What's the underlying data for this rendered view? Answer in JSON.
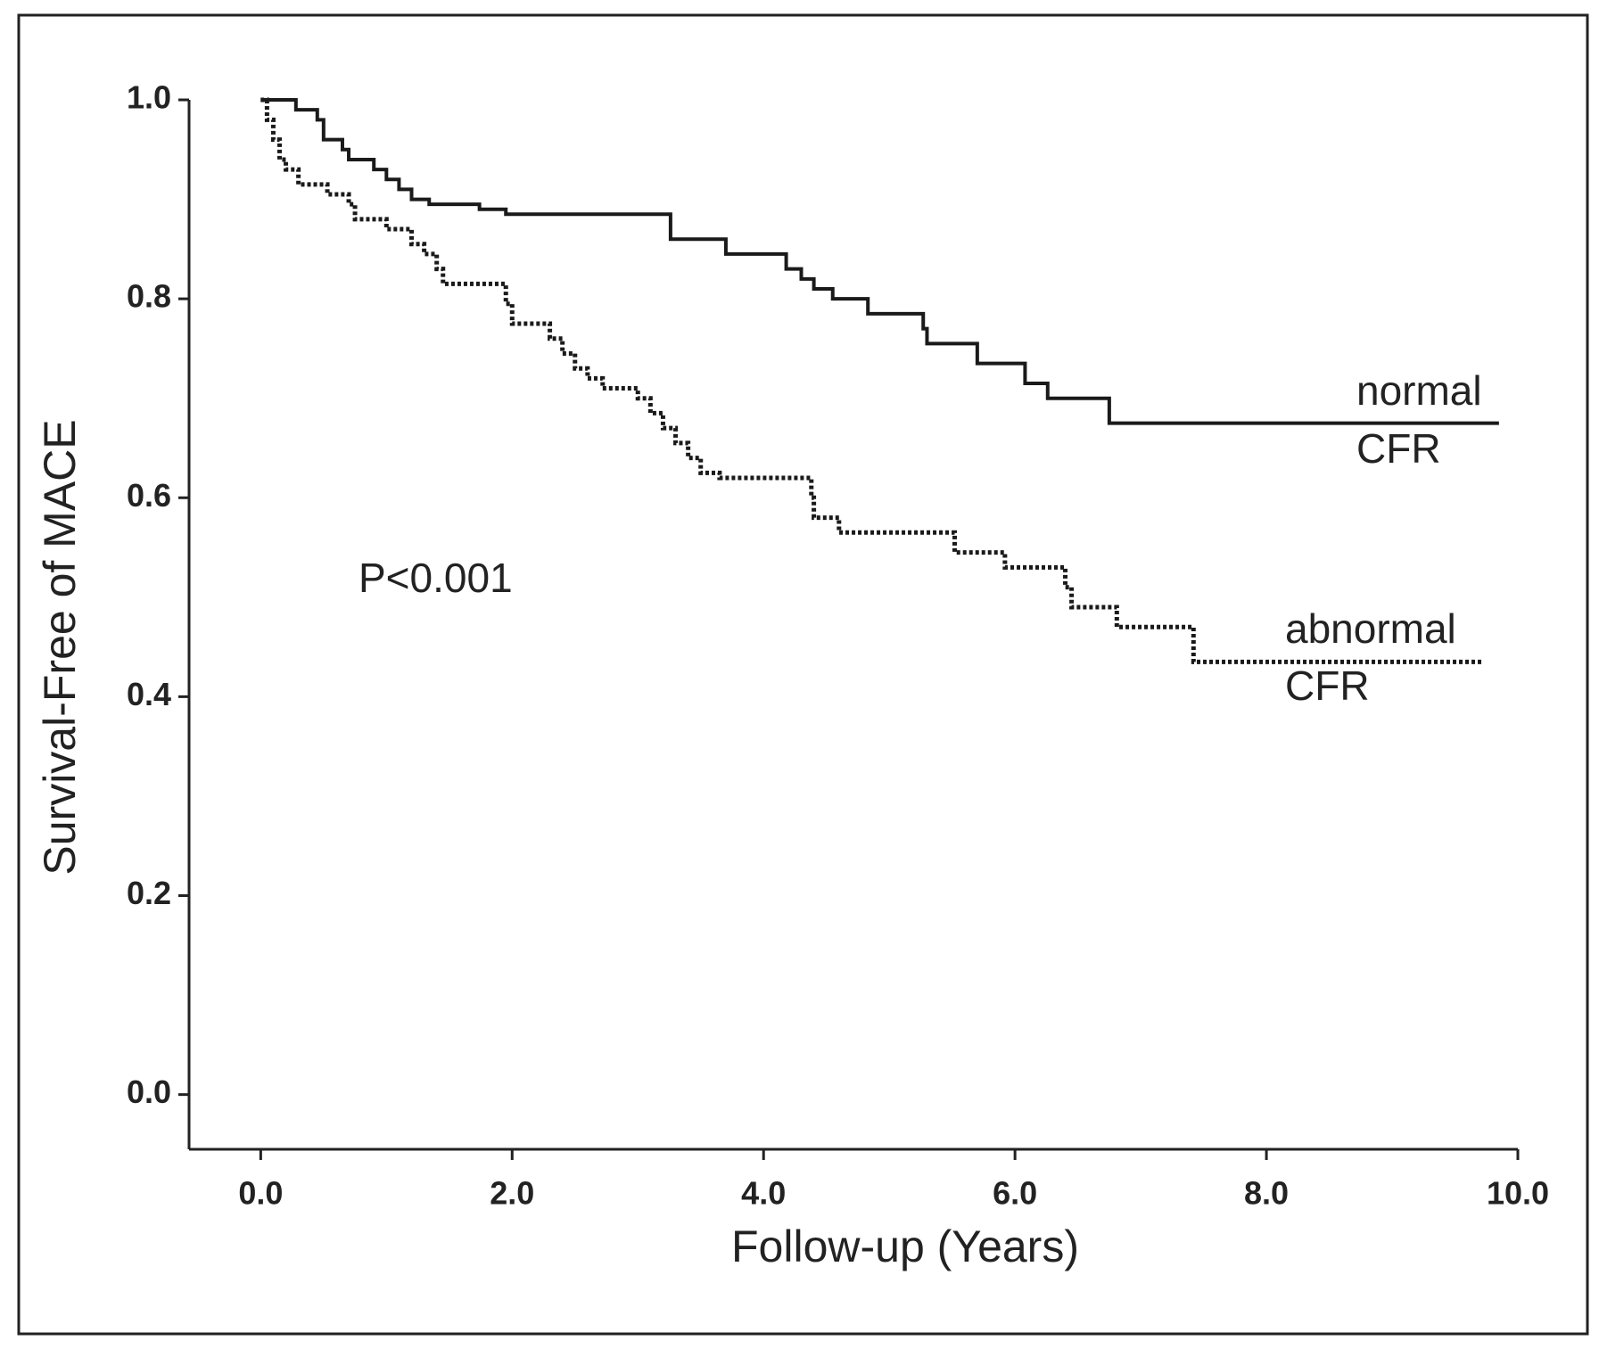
{
  "chart_data": {
    "type": "step",
    "x_label": "Follow-up (Years)",
    "y_label": "Survival-Free of MACE",
    "annotation": "P<0.001",
    "xlim": [
      -0.57,
      10
    ],
    "ylim": [
      -0.055,
      1
    ],
    "xticks": [
      {
        "value": 0,
        "label": "0.0"
      },
      {
        "value": 2,
        "label": "2.0"
      },
      {
        "value": 4,
        "label": "4.0"
      },
      {
        "value": 6,
        "label": "6.0"
      },
      {
        "value": 8,
        "label": "8.0"
      },
      {
        "value": 10,
        "label": "10.0"
      }
    ],
    "yticks": [
      {
        "value": 0,
        "label": "0.0"
      },
      {
        "value": 0.2,
        "label": "0.2"
      },
      {
        "value": 0.4,
        "label": "0.4"
      },
      {
        "value": 0.6,
        "label": "0.6"
      },
      {
        "value": 0.8,
        "label": "0.8"
      },
      {
        "value": 1,
        "label": "1.0"
      }
    ],
    "series": [
      {
        "name_lines": [
          "normal",
          "CFR"
        ],
        "color": "#1a1a1a",
        "dashed": false,
        "x": [
          0,
          0.28,
          0.45,
          0.5,
          0.65,
          0.7,
          0.9,
          1.0,
          1.1,
          1.2,
          1.34,
          1.74,
          1.95,
          3.26,
          3.7,
          4.18,
          4.3,
          4.4,
          4.55,
          4.83,
          5.27,
          5.3,
          5.7,
          6.08,
          6.26,
          6.75,
          9.85
        ],
        "values": [
          1.0,
          0.99,
          0.98,
          0.96,
          0.95,
          0.94,
          0.93,
          0.92,
          0.91,
          0.9,
          0.895,
          0.89,
          0.885,
          0.86,
          0.845,
          0.83,
          0.82,
          0.81,
          0.8,
          0.785,
          0.77,
          0.755,
          0.735,
          0.715,
          0.7,
          0.675,
          0.675
        ]
      },
      {
        "name_lines": [
          "abnormal",
          "CFR"
        ],
        "color": "#1a1a1a",
        "dashed": true,
        "x": [
          0,
          0.05,
          0.1,
          0.15,
          0.2,
          0.3,
          0.53,
          0.7,
          0.75,
          1.0,
          1.2,
          1.3,
          1.4,
          1.45,
          1.95,
          2.0,
          2.3,
          2.4,
          2.5,
          2.6,
          2.72,
          3.0,
          3.1,
          3.2,
          3.3,
          3.4,
          3.5,
          3.65,
          4.38,
          4.4,
          4.6,
          5.52,
          5.92,
          6.4,
          6.45,
          6.81,
          7.42,
          9.73
        ],
        "values": [
          1.0,
          0.98,
          0.96,
          0.94,
          0.93,
          0.915,
          0.905,
          0.895,
          0.88,
          0.87,
          0.855,
          0.845,
          0.83,
          0.815,
          0.795,
          0.775,
          0.76,
          0.745,
          0.73,
          0.72,
          0.71,
          0.7,
          0.685,
          0.67,
          0.655,
          0.64,
          0.625,
          0.62,
          0.6,
          0.58,
          0.565,
          0.545,
          0.53,
          0.51,
          0.49,
          0.47,
          0.435,
          0.435
        ]
      }
    ]
  }
}
